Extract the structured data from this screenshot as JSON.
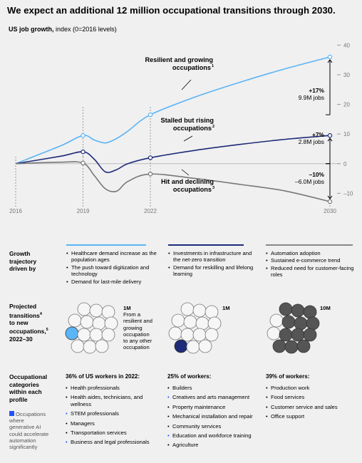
{
  "title": "We expect an additional 12 million occupational transitions through 2030.",
  "subtitle": {
    "bold": "US job growth,",
    "rest": " index (0=2016 levels)"
  },
  "chart_data": {
    "type": "line",
    "x_ticks": [
      "2016",
      "2019",
      "2022",
      "2030"
    ],
    "y_ticks": [
      "40",
      "30",
      "20",
      "10",
      "0",
      "-10"
    ],
    "ylim": [
      -14,
      42
    ],
    "series": [
      {
        "name": "Resilient and growing occupations",
        "color": "#5ab4f5",
        "points": [
          [
            2016,
            0
          ],
          [
            2018,
            6
          ],
          [
            2019,
            9.5
          ],
          [
            2019.5,
            8
          ],
          [
            2020,
            7
          ],
          [
            2020.5,
            8.5
          ],
          [
            2021,
            11
          ],
          [
            2022,
            16.5
          ],
          [
            2024,
            22.5
          ],
          [
            2026,
            27.5
          ],
          [
            2028,
            32
          ],
          [
            2030,
            36
          ]
        ]
      },
      {
        "name": "Stalled but rising occupations",
        "color": "#1e2a78",
        "points": [
          [
            2016,
            0
          ],
          [
            2018,
            2.5
          ],
          [
            2019,
            4
          ],
          [
            2019.5,
            1.5
          ],
          [
            2020,
            -2.8
          ],
          [
            2020.5,
            -2
          ],
          [
            2021,
            0
          ],
          [
            2022,
            2
          ],
          [
            2024,
            4.5
          ],
          [
            2026,
            6.5
          ],
          [
            2028,
            8.2
          ],
          [
            2030,
            9.5
          ]
        ]
      },
      {
        "name": "Hit and declining occupations",
        "color": "#777777",
        "points": [
          [
            2016,
            0
          ],
          [
            2018,
            0.5
          ],
          [
            2019,
            0.2
          ],
          [
            2019.5,
            -4
          ],
          [
            2020,
            -8.5
          ],
          [
            2020.5,
            -9.3
          ],
          [
            2021,
            -6
          ],
          [
            2022,
            -3.5
          ],
          [
            2024,
            -5
          ],
          [
            2026,
            -7
          ],
          [
            2028,
            -9.2
          ],
          [
            2030,
            -12.8
          ]
        ]
      }
    ],
    "markers": [
      {
        "series": 0,
        "points": [
          [
            2019,
            9.5
          ],
          [
            2022,
            16.5
          ],
          [
            2030,
            36
          ]
        ]
      },
      {
        "series": 1,
        "points": [
          [
            2019,
            4
          ],
          [
            2022,
            2
          ],
          [
            2030,
            9.5
          ]
        ]
      },
      {
        "series": 2,
        "points": [
          [
            2019,
            0.2
          ],
          [
            2022,
            -3.5
          ],
          [
            2030,
            -12.8
          ]
        ]
      }
    ],
    "annotations": [
      {
        "label": "Resilient and growing",
        "label2": "occupations",
        "sup": "1",
        "change": "+17%",
        "jobs": "9.9M jobs"
      },
      {
        "label": "Stalled but rising",
        "label2": "occupations",
        "sup": "2",
        "change": "+7%",
        "jobs": "2.8M jobs"
      },
      {
        "label": "Hit and declining",
        "label2": "occupations",
        "sup": "3",
        "change": "–10%",
        "jobs": "–6.0M jobs"
      }
    ]
  },
  "rows": {
    "growth_label": [
      "Growth",
      "trajectory",
      "driven by"
    ],
    "transitions_label": [
      "Projected",
      "transitions",
      "to new",
      "occupations,",
      "2022–30"
    ],
    "transitions_sup1": "4",
    "transitions_sup2": "5",
    "categories_label": [
      "Occupational",
      "categories",
      "within each",
      "profile"
    ],
    "legend_note": [
      "Occupations",
      "where",
      "generative AI",
      "could accelerate",
      "automation",
      "significantly"
    ]
  },
  "columns": [
    {
      "color": "#5ab4f5",
      "drivers": [
        "Healthcare demand increase as the population ages",
        "The push toward digitization and technology",
        "Demand for last-mile delivery"
      ],
      "transitions": "1M",
      "transition_note": [
        "From a",
        "resilient and",
        "growing",
        "occupation",
        "to any other",
        "occupation"
      ],
      "pct_heading": "36% of US workers in 2022:",
      "categories": [
        {
          "name": "Health professionals",
          "ai": false
        },
        {
          "name": "Health aides, technicians, and wellness",
          "ai": false
        },
        {
          "name": "STEM professionals",
          "ai": true
        },
        {
          "name": "Managers",
          "ai": false
        },
        {
          "name": "Transportation services",
          "ai": false
        },
        {
          "name": "Business and legal professionals",
          "ai": true
        }
      ]
    },
    {
      "color": "#1e2a78",
      "drivers": [
        "Investments in infrastructure and the net-zero transition",
        "Demand for reskilling and lifelong learning"
      ],
      "transitions": "1M",
      "pct_heading": "25% of workers:",
      "categories": [
        {
          "name": "Builders",
          "ai": false
        },
        {
          "name": "Creatives and arts management",
          "ai": true
        },
        {
          "name": "Property maintenance",
          "ai": false
        },
        {
          "name": "Mechanical installation and repair",
          "ai": false
        },
        {
          "name": "Community services",
          "ai": false
        },
        {
          "name": "Education and workforce training",
          "ai": true
        },
        {
          "name": "Agriculture",
          "ai": false
        }
      ]
    },
    {
      "color": "#888888",
      "drivers": [
        "Automation adoption",
        "Sustained e-commerce trend",
        "Reduced need for customer-facing roles"
      ],
      "transitions": "10M",
      "pct_heading": "39% of workers:",
      "categories": [
        {
          "name": "Production work",
          "ai": false
        },
        {
          "name": "Food services",
          "ai": false
        },
        {
          "name": "Customer service and sales",
          "ai": false
        },
        {
          "name": "Office support",
          "ai": false
        }
      ]
    }
  ]
}
